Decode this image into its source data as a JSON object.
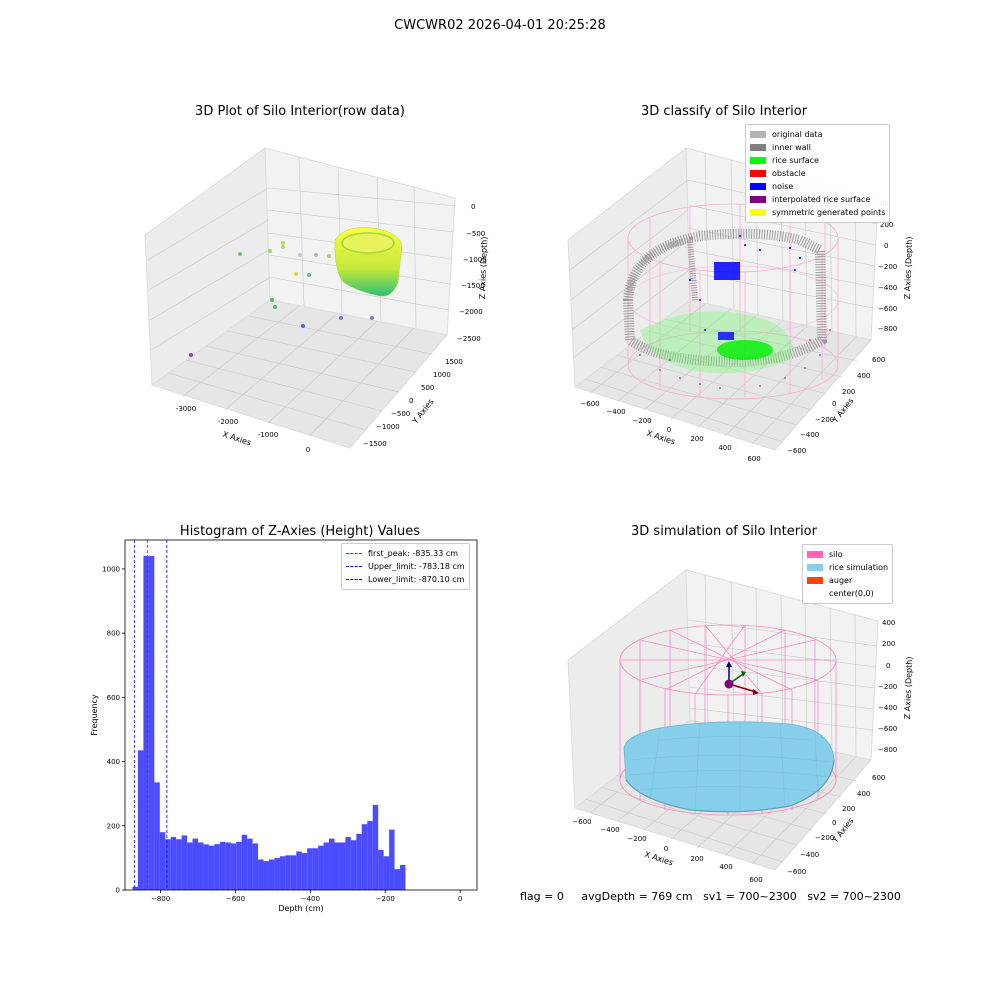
{
  "suptitle": "CWCWR02 2026-04-01 20:25:28",
  "panel1": {
    "title": "3D Plot of Silo Interior(row data)",
    "xlabel": "X Axies",
    "ylabel": "Y Axies",
    "zlabel": "Z Axies (Depth)",
    "xticks": [
      "-3000",
      "-2000",
      "-1000",
      "0"
    ],
    "yticks": [
      "1500",
      "1000",
      "500",
      "0",
      "−500",
      "−1000",
      "−1500"
    ],
    "zticks": [
      "0",
      "−500",
      "−1000",
      "−1500",
      "−2000",
      "−2500"
    ]
  },
  "panel2": {
    "title": "3D classify of Silo Interior",
    "xlabel": "X Axies",
    "ylabel": "Y Axies",
    "zlabel": "Z Axies (Depth)",
    "xticks": [
      "−600",
      "−400",
      "−200",
      "0",
      "200",
      "400",
      "600"
    ],
    "yticks": [
      "600",
      "400",
      "200",
      "0",
      "−200",
      "−400",
      "−600"
    ],
    "zticks": [
      "200",
      "0",
      "−200",
      "−400",
      "−600",
      "−800"
    ],
    "partial_ztick": "00",
    "legend": [
      {
        "label": "original data",
        "color": "#b3b3b3"
      },
      {
        "label": "inner wall",
        "color": "#808080"
      },
      {
        "label": "rice surface",
        "color": "#00ff00"
      },
      {
        "label": "obstacle",
        "color": "#ff0000"
      },
      {
        "label": "noise",
        "color": "#0000ff"
      },
      {
        "label": "interpolated rice surface",
        "color": "#800080"
      },
      {
        "label": "symmetric generated points",
        "color": "#ffff00"
      }
    ]
  },
  "panel4": {
    "title": "3D simulation of Silo Interior",
    "xlabel": "X Axies",
    "ylabel": "Y Axies",
    "zlabel": "Z Axies (Depth)",
    "xticks": [
      "−600",
      "−400",
      "−200",
      "0",
      "200",
      "400",
      "600"
    ],
    "yticks": [
      "600",
      "400",
      "200",
      "0",
      "−200",
      "−400",
      "−600"
    ],
    "zticks": [
      "400",
      "200",
      "0",
      "−200",
      "−400",
      "−600",
      "−800"
    ],
    "legend": [
      {
        "label": "silo",
        "color": "#ff69b4"
      },
      {
        "label": "rice simulation",
        "color": "#87ceeb"
      },
      {
        "label": "auger",
        "color": "#ff4500"
      },
      {
        "label": "center(0,0)",
        "color": ""
      }
    ]
  },
  "chart_data": {
    "type": "bar",
    "title": "Histogram of Z-Axies (Height) Values",
    "xlabel": "Depth (cm)",
    "ylabel": "Frequency",
    "xlim": [
      -895,
      45
    ],
    "ylim": [
      0,
      1090
    ],
    "xticks": [
      -800,
      -600,
      -400,
      -200,
      0
    ],
    "xtick_labels": [
      "−800",
      "−600",
      "−400",
      "−200",
      "0"
    ],
    "yticks": [
      0,
      200,
      400,
      600,
      800,
      1000
    ],
    "bin_start": -875,
    "bin_width": 14.58,
    "values": [
      10,
      435,
      1040,
      1040,
      335,
      180,
      158,
      165,
      158,
      170,
      148,
      160,
      148,
      142,
      138,
      143,
      150,
      148,
      145,
      150,
      172,
      160,
      145,
      95,
      90,
      95,
      100,
      105,
      108,
      108,
      120,
      115,
      130,
      130,
      138,
      148,
      160,
      148,
      148,
      165,
      155,
      175,
      205,
      215,
      265,
      125,
      105,
      188,
      65,
      78
    ],
    "bar_color": "#0000ff",
    "bar_alpha": 0.7,
    "vlines": [
      {
        "name": "first_peak: -835.33 cm",
        "x": -835.33,
        "color": "#ff0000"
      },
      {
        "name": "Upper_limit: -783.18 cm",
        "x": -783.18,
        "color": "#0000ff"
      },
      {
        "name": "Lower_limit: -870.10 cm",
        "x": -870.1,
        "color": "#0000ff"
      }
    ],
    "legend_position": "upper right"
  },
  "footer": {
    "flag": "flag = 0",
    "avg": "avgDepth = 769 cm",
    "sv1": "sv1 = 700~2300",
    "sv2": "sv2 = 700~2300"
  }
}
